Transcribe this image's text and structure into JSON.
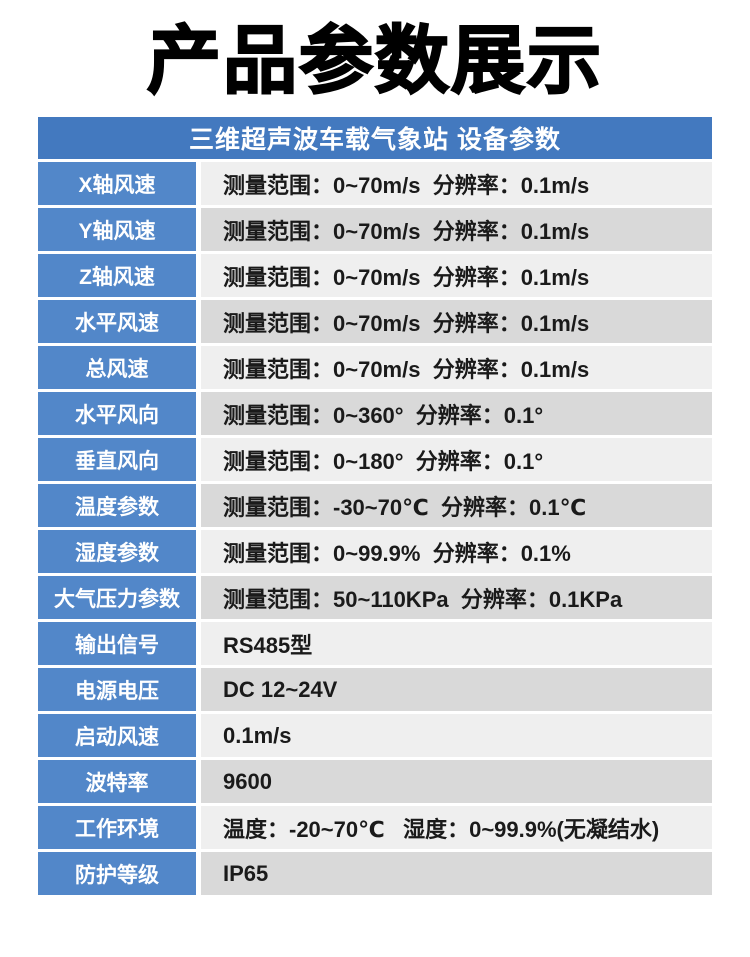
{
  "page": {
    "title": "产品参数展示"
  },
  "table": {
    "header": "三维超声波车载气象站 设备参数",
    "rows": [
      {
        "label": "X轴风速",
        "value": "测量范围：0~70m/s  分辨率：0.1m/s"
      },
      {
        "label": "Y轴风速",
        "value": "测量范围：0~70m/s  分辨率：0.1m/s"
      },
      {
        "label": "Z轴风速",
        "value": "测量范围：0~70m/s  分辨率：0.1m/s"
      },
      {
        "label": "水平风速",
        "value": "测量范围：0~70m/s  分辨率：0.1m/s"
      },
      {
        "label": "总风速",
        "value": "测量范围：0~70m/s  分辨率：0.1m/s"
      },
      {
        "label": "水平风向",
        "value": "测量范围：0~360°  分辨率：0.1°"
      },
      {
        "label": "垂直风向",
        "value": "测量范围：0~180°  分辨率：0.1°"
      },
      {
        "label": "温度参数",
        "value": "测量范围：-30~70℃  分辨率：0.1℃"
      },
      {
        "label": "湿度参数",
        "value": "测量范围：0~99.9%  分辨率：0.1%"
      },
      {
        "label": "大气压力参数",
        "value": "测量范围：50~110KPa  分辨率：0.1KPa"
      },
      {
        "label": "输出信号",
        "value": "RS485型"
      },
      {
        "label": "电源电压",
        "value": "DC 12~24V"
      },
      {
        "label": "启动风速",
        "value": "0.1m/s"
      },
      {
        "label": "波特率",
        "value": "9600"
      },
      {
        "label": "工作环境",
        "value": "温度：-20~70℃   湿度：0~99.9%(无凝结水)"
      },
      {
        "label": "防护等级",
        "value": "IP65"
      }
    ]
  },
  "colors": {
    "title_text": "#000000",
    "header_bg": "#4379bf",
    "header_text": "#ffffff",
    "label_bg": "#5287c9",
    "label_text": "#ffffff",
    "row_bg_light": "#efefef",
    "row_bg_dark": "#d9d9d9",
    "value_text": "#1a1a1a"
  }
}
